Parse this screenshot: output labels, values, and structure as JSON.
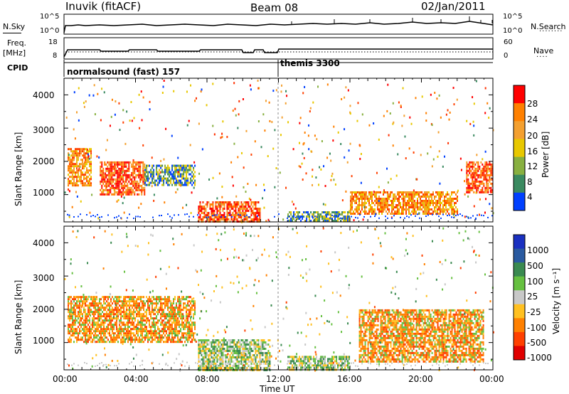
{
  "header": {
    "station": "Inuvik (fitACF)",
    "beam": "Beam 08",
    "date": "02/Jan/2011"
  },
  "top_panels": {
    "nsky_label": "N.Sky",
    "nsky_ticks": [
      "10^5",
      "10^0"
    ],
    "nsearch_label": "N.Search",
    "nsearch_ticks": [
      "10^5",
      "10^0"
    ],
    "freq_label_1": "Freq.",
    "freq_label_2": "[MHz]",
    "freq_ticks": [
      "18",
      "8"
    ],
    "nave_label": "Nave",
    "nave_ticks": [
      "60",
      "0"
    ],
    "cpid_label": "CPID",
    "cpid_modes": [
      {
        "name": "normalsound (fast) 157",
        "start_hour": 0
      },
      {
        "name": "themis 3300",
        "start_hour": 12
      }
    ]
  },
  "axes": {
    "y_label": "Slant Range [km]",
    "y_ticks": [
      "4000",
      "3000",
      "2000",
      "1000"
    ],
    "x_ticks": [
      "00:00",
      "04:00",
      "08:00",
      "12:00",
      "16:00",
      "20:00",
      "00:00"
    ],
    "x_label": "Time UT"
  },
  "power_scale": {
    "label": "Power [dB]",
    "ticks": [
      "28",
      "24",
      "20",
      "16",
      "12",
      "8",
      "4"
    ],
    "colors": [
      "#ff0000",
      "#ff8000",
      "#f4a030",
      "#e8c800",
      "#88b040",
      "#3a8a60",
      "#0040ff"
    ]
  },
  "velocity_scale": {
    "label": "Velocity [m s⁻¹]",
    "ticks": [
      "1000",
      "500",
      "100",
      "25",
      "-25",
      "-100",
      "-500",
      "-1000"
    ],
    "colors": [
      "#1a30c0",
      "#2a5aa0",
      "#3a8a50",
      "#66c040",
      "#c8c8c8",
      "#ffc020",
      "#ff8000",
      "#ff4000",
      "#e00000"
    ]
  },
  "chart_data": {
    "type": "heatmap",
    "x_range_hours": [
      0,
      24
    ],
    "y_range_km": [
      180,
      4500
    ],
    "power_regions": [
      {
        "t0": 0.2,
        "t1": 1.5,
        "r0": 1300,
        "r1": 2400,
        "level": "orange"
      },
      {
        "t0": 2,
        "t1": 4.5,
        "r0": 1000,
        "r1": 2000,
        "level": "red"
      },
      {
        "t0": 4.5,
        "t1": 7.3,
        "r0": 1300,
        "r1": 1900,
        "level": "green"
      },
      {
        "t0": 7.5,
        "t1": 11,
        "r0": 180,
        "r1": 800,
        "level": "red"
      },
      {
        "t0": 12.5,
        "t1": 16,
        "r0": 180,
        "r1": 500,
        "level": "green"
      },
      {
        "t0": 16,
        "t1": 22,
        "r0": 400,
        "r1": 1100,
        "level": "orange"
      },
      {
        "t0": 22.5,
        "t1": 24,
        "r0": 1100,
        "r1": 2000,
        "level": "red"
      }
    ],
    "velocity_regions": [
      {
        "t0": 0.2,
        "t1": 7.3,
        "r0": 1000,
        "r1": 2400,
        "level": "-100"
      },
      {
        "t0": 7.5,
        "t1": 11.5,
        "r0": 180,
        "r1": 1100,
        "level": "25"
      },
      {
        "t0": 12.5,
        "t1": 16,
        "r0": 180,
        "r1": 600,
        "level": "100"
      },
      {
        "t0": 16.5,
        "t1": 23.5,
        "r0": 400,
        "r1": 2000,
        "level": "-100"
      }
    ]
  }
}
